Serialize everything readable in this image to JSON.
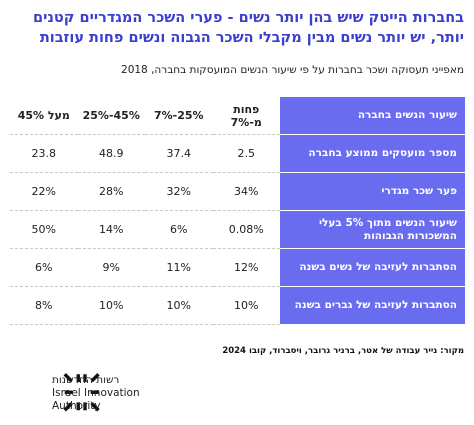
{
  "header": {
    "title_lines": [
      "בחברות הייטק שיש בהן יותר נשים - פערי השכר המגדריים קטנים",
      "יותר, יש יותר נשים מבין מקבלי השכר הגבוה ונשים פחות עוזבות"
    ],
    "subtitle": "מאפייני תעסוקה ושכר בחברות על פי שיעור הנשים המועסקות בחברה, 2018"
  },
  "table": {
    "header": [
      "שיעור הנשים בחברה",
      "פחות מ-7%",
      "25%-7%",
      "45%-25%",
      "מעל 45%"
    ],
    "rows": [
      [
        "מספר מועסקים ממוצע בחברה",
        "2.5",
        "37.4",
        "48.9",
        "23.8"
      ],
      [
        "פער שכר מגדרי",
        "34%",
        "32%",
        "28%",
        "22%"
      ],
      [
        "שיעור הנשים מתוך 5% בעלי המשכורות הגבוהות",
        "0.08%",
        "6%",
        "14%",
        "50%"
      ],
      [
        "הסתברות לעזיבה של נשים בשנה",
        "12%",
        "11%",
        "9%",
        "6%"
      ],
      [
        "הסתברות לעזיבה של גברים בשנה",
        "10%",
        "10%",
        "10%",
        "8%"
      ]
    ]
  },
  "footer": {
    "source": "מקור: נייר עבודה של אטר, ברניר גרובר, ויסברוד, קובו 2024",
    "logo_lines": [
      "רשות החדשנות",
      "Israel Innovation",
      "Authority"
    ]
  }
}
